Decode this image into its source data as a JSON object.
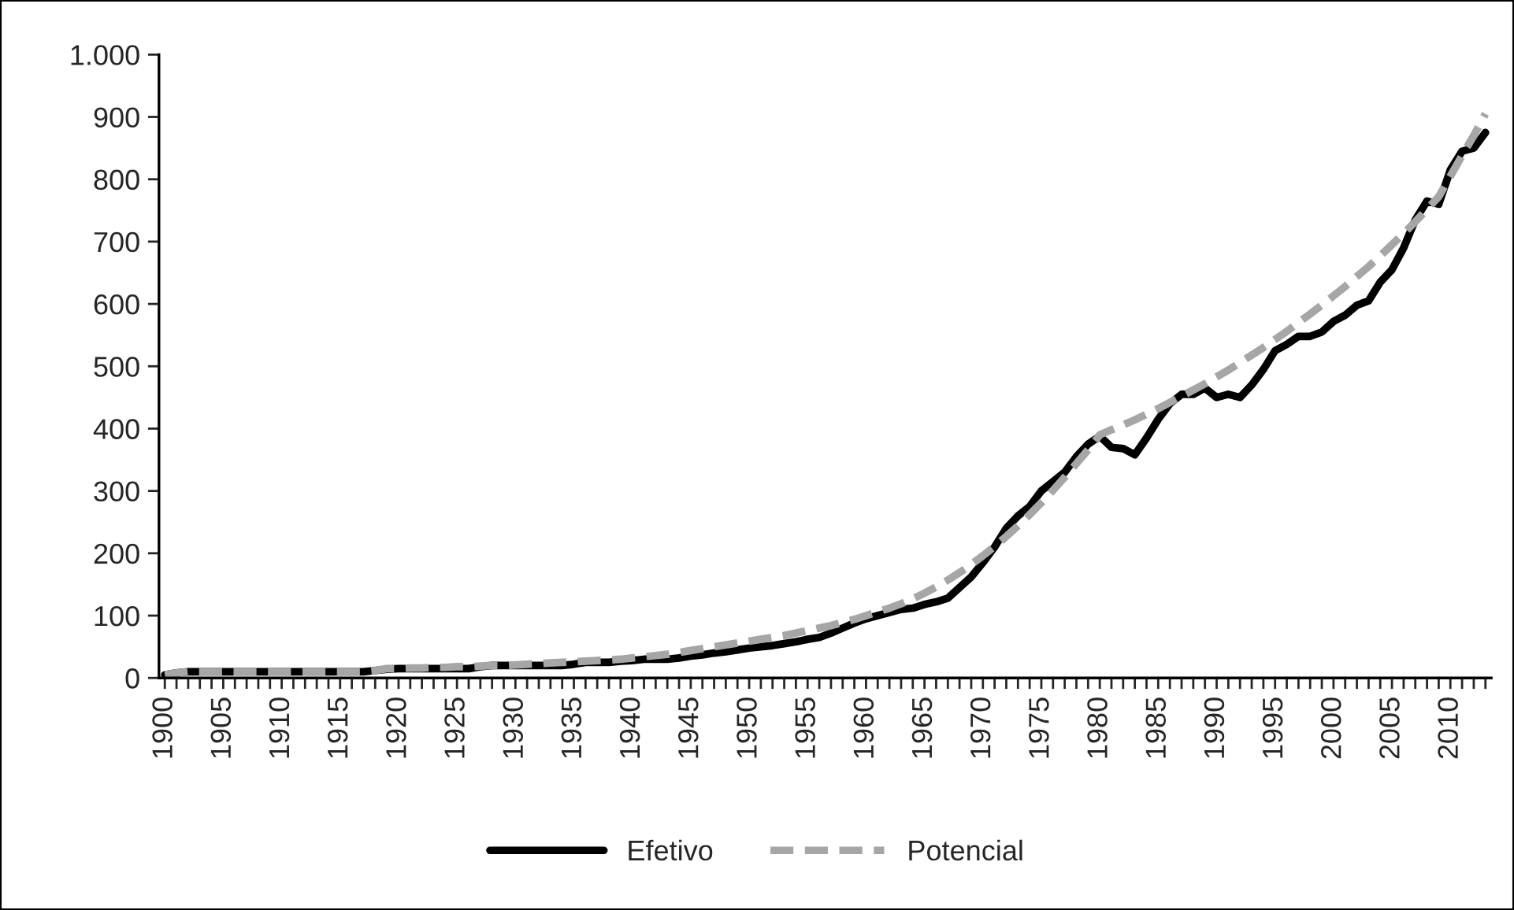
{
  "chart_data": {
    "type": "line",
    "categories": [
      "1900",
      null,
      null,
      null,
      null,
      "1905",
      null,
      null,
      null,
      null,
      "1910",
      null,
      null,
      null,
      null,
      "1915",
      null,
      null,
      null,
      null,
      "1920",
      null,
      null,
      null,
      null,
      "1925",
      null,
      null,
      null,
      null,
      "1930",
      null,
      null,
      null,
      null,
      "1935",
      null,
      null,
      null,
      null,
      "1940",
      null,
      null,
      null,
      null,
      "1945",
      null,
      null,
      null,
      null,
      "1950",
      null,
      null,
      null,
      null,
      "1955",
      null,
      null,
      null,
      null,
      "1960",
      null,
      null,
      null,
      null,
      "1965",
      null,
      null,
      null,
      null,
      "1970",
      null,
      null,
      null,
      null,
      "1975",
      null,
      null,
      null,
      null,
      "1980",
      null,
      null,
      null,
      null,
      "1985",
      null,
      null,
      null,
      null,
      "1990",
      null,
      null,
      null,
      null,
      "1995",
      null,
      null,
      null,
      null,
      "2000",
      null,
      null,
      null,
      null,
      "2005",
      null,
      null,
      null,
      null,
      "2010",
      null,
      null,
      null
    ],
    "series": [
      {
        "name": "Efetivo",
        "color": "#000000",
        "line_style": "solid",
        "values": [
          5,
          8,
          10,
          10,
          10,
          10,
          10,
          10,
          10,
          10,
          10,
          10,
          10,
          10,
          10,
          10,
          10,
          10,
          12,
          14,
          15,
          15,
          15,
          15,
          15,
          15,
          15,
          18,
          20,
          20,
          20,
          20,
          20,
          20,
          20,
          22,
          25,
          25,
          25,
          27,
          28,
          30,
          30,
          30,
          32,
          35,
          37,
          40,
          42,
          45,
          48,
          50,
          52,
          55,
          58,
          62,
          65,
          72,
          80,
          88,
          95,
          100,
          105,
          110,
          112,
          118,
          122,
          128,
          145,
          162,
          185,
          210,
          240,
          260,
          275,
          300,
          315,
          330,
          355,
          375,
          388,
          370,
          368,
          358,
          385,
          415,
          440,
          455,
          455,
          465,
          450,
          455,
          450,
          470,
          495,
          525,
          535,
          548,
          548,
          555,
          572,
          582,
          598,
          605,
          635,
          655,
          690,
          735,
          765,
          760,
          815,
          845,
          850,
          875
        ]
      },
      {
        "name": "Potencial",
        "color": "#a6a6a6",
        "line_style": "dashed",
        "values": [
          5,
          8,
          10,
          10,
          10,
          10,
          10,
          10,
          10,
          10,
          10,
          10,
          10,
          10,
          10,
          10,
          10,
          10,
          12,
          15,
          15,
          16,
          16,
          17,
          17,
          18,
          18,
          19,
          20,
          20,
          21,
          22,
          23,
          24,
          25,
          26,
          27,
          28,
          29,
          30,
          32,
          34,
          36,
          38,
          41,
          44,
          47,
          50,
          53,
          56,
          59,
          62,
          65,
          68,
          72,
          76,
          80,
          84,
          89,
          94,
          100,
          106,
          112,
          119,
          127,
          136,
          146,
          157,
          169,
          182,
          196,
          211,
          227,
          244,
          262,
          281,
          301,
          322,
          344,
          366,
          390,
          398,
          406,
          414,
          423,
          432,
          442,
          452,
          462,
          472,
          483,
          494,
          506,
          518,
          530,
          543,
          556,
          570,
          584,
          598,
          613,
          628,
          644,
          660,
          677,
          695,
          713,
          732,
          752,
          772,
          805,
          838,
          870,
          905
        ]
      }
    ],
    "ylim": [
      0,
      1000
    ],
    "yticks": [
      0,
      100,
      200,
      300,
      400,
      500,
      600,
      700,
      800,
      900,
      {
        "value": 1000,
        "label": "1.000"
      }
    ],
    "grid": false,
    "legend": "bottom",
    "marker": "none"
  }
}
